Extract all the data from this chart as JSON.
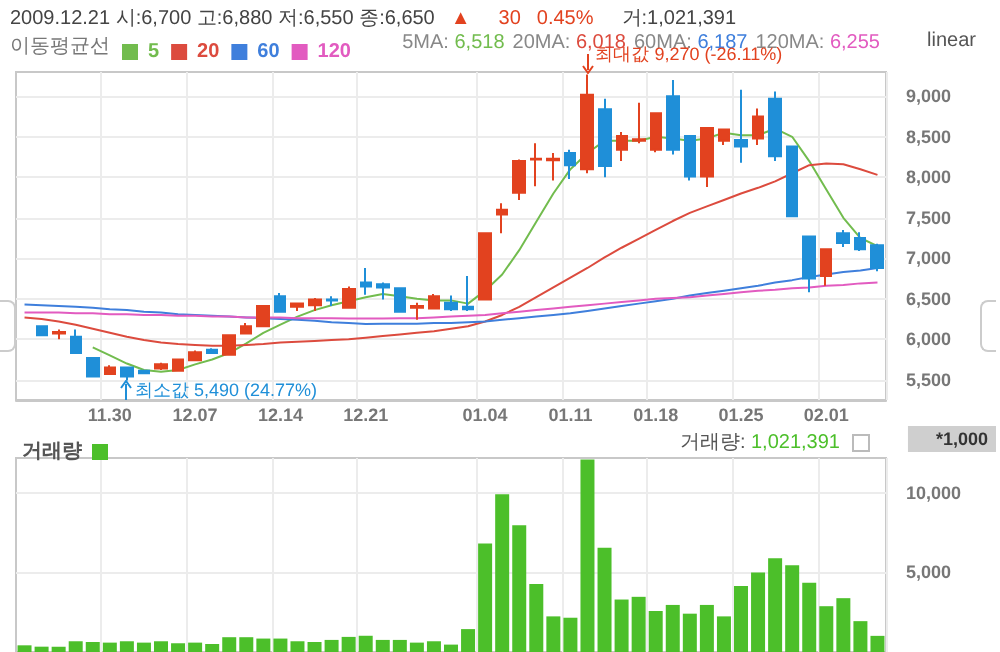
{
  "chart_data": [
    {
      "type": "candlestick",
      "legend_title": "이동평균선",
      "legend": "top left",
      "grid": true,
      "marker": "none",
      "line_style": "solid",
      "annotations": [
        "2009.12.21 시:6,700 고:6,880 저:6,550 종:6,650",
        "▲",
        "30",
        "0.45%",
        "거:1,021,391",
        "5MA: 6,518",
        "20MA: 6,018",
        "60MA: 6,187",
        "120MA: 6,255",
        "linear",
        "최대값 9,270 (-26.11%)",
        "최소값 5,490 (24.77%)"
      ],
      "categories": [
        null,
        null,
        null,
        null,
        null,
        "11.30",
        null,
        null,
        null,
        null,
        "12.07",
        null,
        null,
        null,
        null,
        "12.14",
        null,
        null,
        null,
        null,
        "12.21",
        null,
        null,
        null,
        null,
        null,
        null,
        "01.04",
        null,
        null,
        null,
        null,
        "01.11",
        null,
        null,
        null,
        null,
        "01.18",
        null,
        null,
        null,
        null,
        "01.25",
        null,
        null,
        null,
        null,
        "02.01",
        null,
        null,
        null
      ],
      "ylim": [
        5250,
        9300
      ],
      "yticks": [
        {
          "value": 5500,
          "label": "5,500"
        },
        {
          "value": 6000,
          "label": "6,000"
        },
        {
          "value": 6500,
          "label": "6,500"
        },
        {
          "value": 7000,
          "label": "7,000"
        },
        {
          "value": 7500,
          "label": "7,500"
        },
        {
          "value": 8000,
          "label": "8,000"
        },
        {
          "value": 8500,
          "label": "8,500"
        },
        {
          "value": 9000,
          "label": "9,000"
        }
      ],
      "ohlc": [
        null,
        [
          6160,
          6170,
          6040,
          6050
        ],
        [
          6070,
          6120,
          6000,
          6090
        ],
        [
          6030,
          6120,
          5820,
          5830
        ],
        [
          5770,
          5780,
          5530,
          5540
        ],
        [
          5570,
          5680,
          5560,
          5650
        ],
        [
          5650,
          5660,
          5490,
          5540
        ],
        [
          5610,
          5620,
          5570,
          5580
        ],
        [
          5640,
          5710,
          5620,
          5690
        ],
        [
          5610,
          5760,
          5600,
          5750
        ],
        [
          5740,
          5860,
          5730,
          5840
        ],
        [
          5870,
          5890,
          5820,
          5830
        ],
        [
          5810,
          6060,
          5800,
          6050
        ],
        [
          6070,
          6200,
          6060,
          6160
        ],
        [
          6160,
          6420,
          6150,
          6410
        ],
        [
          6530,
          6570,
          6330,
          6340
        ],
        [
          6400,
          6450,
          6350,
          6440
        ],
        [
          6420,
          6510,
          6350,
          6490
        ],
        [
          6490,
          6530,
          6410,
          6480
        ],
        [
          6390,
          6650,
          6380,
          6620
        ],
        [
          6700,
          6880,
          6550,
          6650
        ],
        [
          6680,
          6700,
          6490,
          6640
        ],
        [
          6630,
          6640,
          6330,
          6340
        ],
        [
          6390,
          6450,
          6240,
          6410
        ],
        [
          6380,
          6560,
          6370,
          6530
        ],
        [
          6450,
          6540,
          6350,
          6370
        ],
        [
          6400,
          6780,
          6350,
          6370
        ],
        [
          6490,
          7320,
          6480,
          7310
        ],
        [
          7540,
          7680,
          7310,
          7600
        ],
        [
          7810,
          8220,
          7720,
          8200
        ],
        [
          8220,
          8420,
          7890,
          8230
        ],
        [
          8210,
          8300,
          7960,
          8230
        ],
        [
          8300,
          8340,
          7980,
          8150
        ],
        [
          8100,
          9270,
          8050,
          9020
        ],
        [
          8840,
          8970,
          8000,
          8140
        ],
        [
          8340,
          8560,
          8200,
          8510
        ],
        [
          8450,
          8920,
          8420,
          8470
        ],
        [
          8340,
          8800,
          8310,
          8790
        ],
        [
          9000,
          9200,
          8280,
          8340
        ],
        [
          8510,
          8520,
          7960,
          8010
        ],
        [
          8010,
          8620,
          7880,
          8610
        ],
        [
          8450,
          8600,
          8400,
          8590
        ],
        [
          8460,
          9080,
          8180,
          8380
        ],
        [
          8480,
          8850,
          8400,
          8750
        ],
        [
          8970,
          9060,
          8200,
          8260
        ],
        [
          8380,
          8380,
          7520,
          7520
        ],
        [
          7270,
          7280,
          6580,
          6750
        ],
        [
          6780,
          7120,
          6660,
          7110
        ],
        [
          7310,
          7350,
          7140,
          7190
        ],
        [
          7250,
          7320,
          7090,
          7110
        ],
        [
          7160,
          7180,
          6840,
          6880
        ]
      ],
      "colors": [
        null,
        "#1f8fd8",
        "#e2421f",
        "#1f8fd8",
        "#1f8fd8",
        "#e2421f",
        "#1f8fd8",
        "#1f8fd8",
        "#e2421f",
        "#e2421f",
        "#e2421f",
        "#1f8fd8",
        "#e2421f",
        "#e2421f",
        "#e2421f",
        "#1f8fd8",
        "#e2421f",
        "#e2421f",
        "#1f8fd8",
        "#e2421f",
        "#1f8fd8",
        "#1f8fd8",
        "#1f8fd8",
        "#e2421f",
        "#e2421f",
        "#1f8fd8",
        "#1f8fd8",
        "#e2421f",
        "#e2421f",
        "#e2421f",
        "#e2421f",
        "#e2421f",
        "#1f8fd8",
        "#e2421f",
        "#1f8fd8",
        "#e2421f",
        "#e2421f",
        "#e2421f",
        "#1f8fd8",
        "#1f8fd8",
        "#e2421f",
        "#e2421f",
        "#1f8fd8",
        "#e2421f",
        "#1f8fd8",
        "#1f8fd8",
        "#1f8fd8",
        "#e2421f",
        "#1f8fd8",
        "#1f8fd8",
        "#1f8fd8"
      ],
      "series": [
        {
          "type": "line",
          "name": "5",
          "color": "#72bc4e",
          "values": [
            null,
            null,
            null,
            null,
            5900,
            5800,
            5700,
            5620,
            5600,
            5620,
            5690,
            5750,
            5830,
            5950,
            6080,
            6180,
            6280,
            6360,
            6420,
            6470,
            6518,
            6560,
            6530,
            6500,
            6480,
            6480,
            6440,
            6600,
            6800,
            7100,
            7450,
            7800,
            8100,
            8300,
            8450,
            8450,
            8450,
            8500,
            8480,
            8450,
            8480,
            8550,
            8520,
            8520,
            8600,
            8500,
            8200,
            7850,
            7500,
            7250,
            7150
          ]
        },
        {
          "type": "line",
          "name": "20",
          "color": "#dc4b3e",
          "values": [
            6270,
            6250,
            6220,
            6180,
            6130,
            6080,
            6030,
            5990,
            5960,
            5940,
            5930,
            5920,
            5920,
            5930,
            5940,
            5960,
            5970,
            5980,
            5990,
            6000,
            6018,
            6040,
            6060,
            6080,
            6100,
            6130,
            6160,
            6220,
            6300,
            6400,
            6520,
            6640,
            6760,
            6880,
            7010,
            7130,
            7240,
            7350,
            7460,
            7560,
            7640,
            7720,
            7800,
            7870,
            7950,
            8050,
            8150,
            8170,
            8160,
            8100,
            8030
          ]
        },
        {
          "type": "line",
          "name": "60",
          "color": "#3f7fdc",
          "values": [
            6430,
            6420,
            6410,
            6400,
            6390,
            6370,
            6360,
            6340,
            6330,
            6310,
            6300,
            6290,
            6280,
            6270,
            6260,
            6250,
            6240,
            6230,
            6210,
            6200,
            6187,
            6190,
            6190,
            6190,
            6200,
            6200,
            6210,
            6220,
            6240,
            6260,
            6280,
            6300,
            6320,
            6350,
            6380,
            6410,
            6440,
            6470,
            6500,
            6540,
            6570,
            6600,
            6630,
            6660,
            6700,
            6730,
            6770,
            6800,
            6830,
            6850,
            6880
          ]
        },
        {
          "type": "line",
          "name": "120",
          "color": "#e25bc0",
          "values": [
            6330,
            6330,
            6330,
            6320,
            6320,
            6310,
            6310,
            6300,
            6300,
            6290,
            6290,
            6280,
            6280,
            6270,
            6270,
            6270,
            6260,
            6260,
            6260,
            6255,
            6255,
            6255,
            6260,
            6260,
            6270,
            6280,
            6290,
            6300,
            6320,
            6340,
            6360,
            6380,
            6400,
            6420,
            6440,
            6460,
            6480,
            6500,
            6510,
            6520,
            6540,
            6560,
            6580,
            6600,
            6610,
            6630,
            6640,
            6660,
            6670,
            6690,
            6700
          ]
        }
      ]
    },
    {
      "type": "bar",
      "legend": "top left",
      "grid": true,
      "tick_labels": "y",
      "ylabel": "*1,000",
      "annotations": [
        "거래량: 1,021,391"
      ],
      "categories": [
        null,
        null,
        null,
        null,
        null,
        "11.30",
        null,
        null,
        null,
        null,
        "12.07",
        null,
        null,
        null,
        null,
        "12.14",
        null,
        null,
        null,
        null,
        "12.21",
        null,
        null,
        null,
        null,
        null,
        null,
        "01.04",
        null,
        null,
        null,
        null,
        "01.11",
        null,
        null,
        null,
        null,
        "01.18",
        null,
        null,
        null,
        null,
        "01.25",
        null,
        null,
        null,
        null,
        "02.01",
        null,
        null,
        null
      ],
      "ylim": [
        0,
        12200
      ],
      "yticks": [
        {
          "value": 5000,
          "label": "5,000"
        },
        {
          "value": 10000,
          "label": "10,000"
        }
      ],
      "series": [
        {
          "name": "거래량",
          "color": "#4cbf2a",
          "values": [
            420,
            335,
            335,
            675,
            630,
            590,
            675,
            590,
            675,
            550,
            590,
            505,
            930,
            930,
            845,
            845,
            675,
            630,
            760,
            950,
            1021,
            760,
            760,
            590,
            675,
            465,
            1440,
            6820,
            9920,
            7965,
            4275,
            2240,
            2155,
            12100,
            6560,
            3300,
            3470,
            2580,
            2960,
            2410,
            2960,
            2240,
            4150,
            5000,
            5890,
            5460,
            4360,
            2880,
            3385,
            1940,
            1015
          ]
        }
      ]
    }
  ]
}
